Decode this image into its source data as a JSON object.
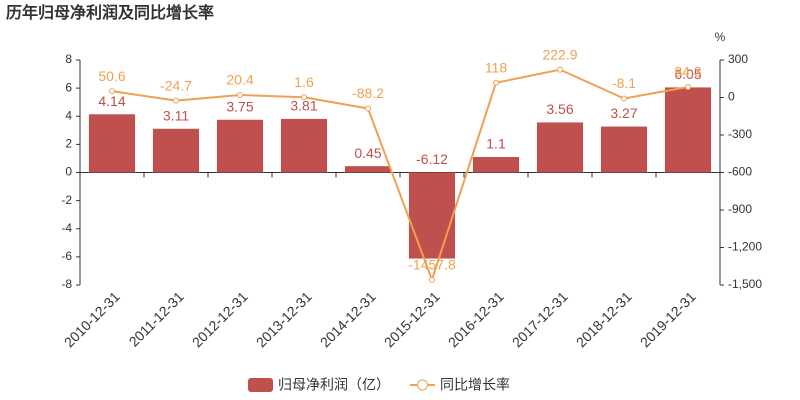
{
  "chart_data": {
    "type": "bar",
    "title": "历年归母净利润及同比增长率",
    "y2_unit": "%",
    "categories": [
      "2010-12-31",
      "2011-12-31",
      "2012-12-31",
      "2013-12-31",
      "2014-12-31",
      "2015-12-31",
      "2016-12-31",
      "2017-12-31",
      "2018-12-31",
      "2019-12-31"
    ],
    "series": [
      {
        "name": "归母净利润（亿）",
        "type": "bar",
        "color": "#c0504d",
        "values": [
          4.14,
          3.11,
          3.75,
          3.81,
          0.45,
          -6.12,
          1.1,
          3.56,
          3.27,
          6.05
        ]
      },
      {
        "name": "同比增长率",
        "type": "line",
        "axis": "y2",
        "color": "#f0a050",
        "values": [
          50.6,
          -24.7,
          20.4,
          1.6,
          -88.2,
          -1457.8,
          118,
          222.9,
          -8.1,
          84.3
        ]
      }
    ],
    "ylim": [
      -8,
      8
    ],
    "yticks": [
      -8,
      -6,
      -4,
      -2,
      0,
      2,
      4,
      6,
      8
    ],
    "y2lim": [
      -1500,
      300
    ],
    "y2ticks": [
      {
        "value": -1500,
        "label": "-1,500"
      },
      {
        "value": -1200,
        "label": "-1,200"
      },
      -900,
      -600,
      -300,
      0,
      300
    ],
    "legend": "bottom",
    "grid": false
  }
}
